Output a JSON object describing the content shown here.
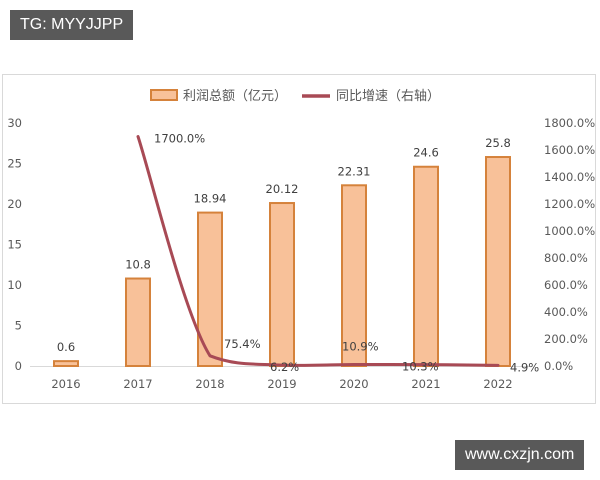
{
  "watermarks": {
    "top_left": "TG: MYYJJPP",
    "bottom_right": "www.cxzjn.com"
  },
  "colors": {
    "bar_fill": "#F8C199",
    "bar_border": "#D5823B",
    "line": "#A84A55",
    "axis_text": "#595959",
    "gridline": "#d9d9d9"
  },
  "chart_data": {
    "type": "bar+line",
    "title": "",
    "legend": [
      "利润总额（亿元）",
      "同比增速（右轴）"
    ],
    "legend_position": "top",
    "categories": [
      "2016",
      "2017",
      "2018",
      "2019",
      "2020",
      "2021",
      "2022"
    ],
    "series": [
      {
        "name": "利润总额（亿元）",
        "type": "bar",
        "axis": "left",
        "values": [
          0.6,
          10.8,
          18.94,
          20.12,
          22.31,
          24.6,
          25.8
        ],
        "labels": [
          "0.6",
          "10.8",
          "18.94",
          "20.12",
          "22.31",
          "24.6",
          "25.8"
        ]
      },
      {
        "name": "同比增速（右轴）",
        "type": "line",
        "axis": "right",
        "values": [
          null,
          1700.0,
          75.4,
          6.2,
          10.9,
          10.3,
          4.9
        ],
        "labels": [
          "",
          "1700.0%",
          "75.4%",
          "6.2%",
          "10.9%",
          "10.3%",
          "4.9%"
        ]
      }
    ],
    "left_axis": {
      "ylim": [
        0,
        30
      ],
      "ticks": [
        "0",
        "5",
        "10",
        "15",
        "20",
        "25",
        "30"
      ]
    },
    "right_axis": {
      "ylim": [
        0,
        1800
      ],
      "ticks": [
        "0.0%",
        "200.0%",
        "400.0%",
        "600.0%",
        "800.0%",
        "1000.0%",
        "1200.0%",
        "1400.0%",
        "1600.0%",
        "1800.0%"
      ]
    },
    "xlabel": "",
    "ylabel": "",
    "grid": false
  }
}
